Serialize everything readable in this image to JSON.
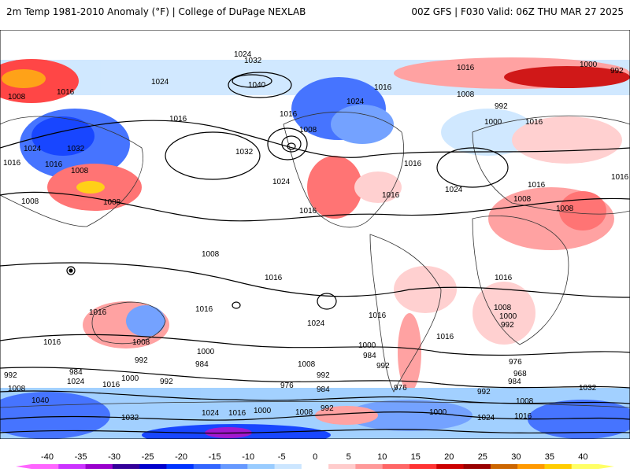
{
  "header": {
    "left_title": "2m Temp 1981-2010 Anomaly (°F) | College of DuPage NEXLAB",
    "right_title": "00Z GFS | F030 Valid: 06Z THU MAR 27 2025"
  },
  "map": {
    "pressure_labels": [
      "1024",
      "1032",
      "1040",
      "1024",
      "1016",
      "1008",
      "1000",
      "992",
      "984",
      "976",
      "968"
    ],
    "isobar_values_shown": [
      1040,
      1032,
      1024,
      1016,
      1008,
      1000,
      992,
      984,
      976,
      968
    ]
  },
  "legend": {
    "ticks": [
      "-40",
      "-35",
      "-30",
      "-25",
      "-20",
      "-15",
      "-10",
      "-5",
      "0",
      "5",
      "10",
      "15",
      "20",
      "25",
      "30",
      "35",
      "40"
    ],
    "colors": [
      "#ff66ff",
      "#cc33ff",
      "#9900cc",
      "#330099",
      "#0000cc",
      "#0033ff",
      "#3366ff",
      "#6699ff",
      "#99ccff",
      "#cce6ff",
      "#ffffff",
      "#ffcccc",
      "#ff9999",
      "#ff6666",
      "#ff3333",
      "#cc0000",
      "#990000",
      "#cc6600",
      "#ff9900",
      "#ffcc00",
      "#ffff66"
    ]
  }
}
